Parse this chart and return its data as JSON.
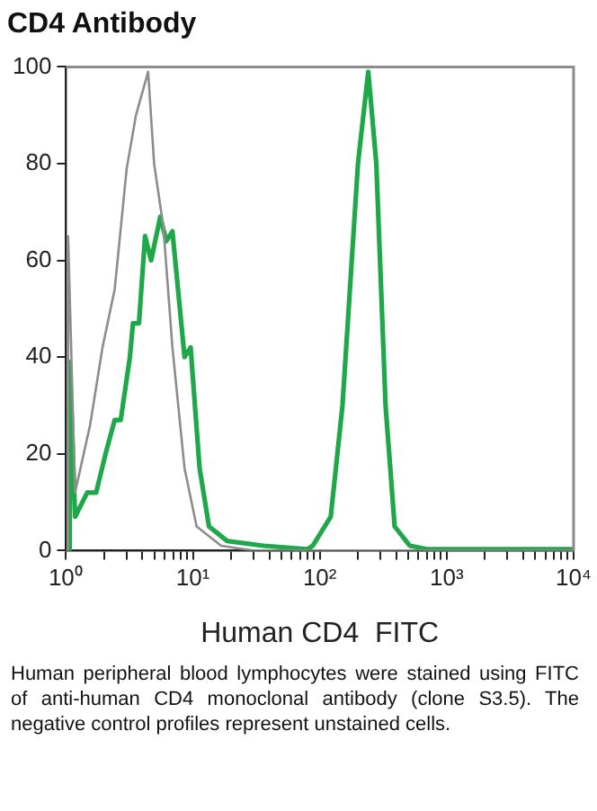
{
  "chart_data": {
    "type": "line",
    "title": "CD4 Antibody",
    "xlabel": "Human CD4  FITC",
    "log": "x",
    "grid": false,
    "legend": false,
    "marker": "none",
    "line_style": "solid",
    "xlim": [
      1,
      10000
    ],
    "xticks": [
      {
        "value": 1,
        "label": "10⁰"
      },
      {
        "value": 2,
        "label": null
      },
      {
        "value": 3,
        "label": null
      },
      {
        "value": 4,
        "label": null
      },
      {
        "value": 5,
        "label": null
      },
      {
        "value": 6,
        "label": null
      },
      {
        "value": 7,
        "label": null
      },
      {
        "value": 8,
        "label": null
      },
      {
        "value": 9,
        "label": null
      },
      {
        "value": 10,
        "label": "10¹"
      },
      {
        "value": 20,
        "label": null
      },
      {
        "value": 30,
        "label": null
      },
      {
        "value": 40,
        "label": null
      },
      {
        "value": 50,
        "label": null
      },
      {
        "value": 60,
        "label": null
      },
      {
        "value": 70,
        "label": null
      },
      {
        "value": 80,
        "label": null
      },
      {
        "value": 90,
        "label": null
      },
      {
        "value": 100,
        "label": "10²"
      },
      {
        "value": 200,
        "label": null
      },
      {
        "value": 300,
        "label": null
      },
      {
        "value": 400,
        "label": null
      },
      {
        "value": 500,
        "label": null
      },
      {
        "value": 600,
        "label": null
      },
      {
        "value": 700,
        "label": null
      },
      {
        "value": 800,
        "label": null
      },
      {
        "value": 900,
        "label": null
      },
      {
        "value": 1000,
        "label": "10³"
      },
      {
        "value": 2000,
        "label": null
      },
      {
        "value": 3000,
        "label": null
      },
      {
        "value": 4000,
        "label": null
      },
      {
        "value": 5000,
        "label": null
      },
      {
        "value": 6000,
        "label": null
      },
      {
        "value": 7000,
        "label": null
      },
      {
        "value": 8000,
        "label": null
      },
      {
        "value": 9000,
        "label": null
      },
      {
        "value": 10000,
        "label": "10⁴"
      }
    ],
    "ylim": [
      0,
      100
    ],
    "yticks": [
      0,
      20,
      40,
      60,
      80,
      100
    ],
    "series": [
      {
        "color": "#8c8c8c",
        "x": [
          1.02,
          1.04,
          1.18,
          1.55,
          1.94,
          2.42,
          3.01,
          3.56,
          4.44,
          4.95,
          5.85,
          6.9,
          8.6,
          10.7,
          16.7,
          30,
          10000
        ],
        "values": [
          0,
          65,
          12,
          26,
          42,
          54,
          79,
          90,
          99,
          80,
          67,
          42,
          17,
          5,
          1,
          0,
          0
        ]
      },
      {
        "color": "#1fa84a",
        "x": [
          1.05,
          1.07,
          1.18,
          1.47,
          1.73,
          2.05,
          2.42,
          2.7,
          3.19,
          3.37,
          3.76,
          4.2,
          4.69,
          5.53,
          6.18,
          6.9,
          8.6,
          9.6,
          11.3,
          13.4,
          18.6,
          36,
          80,
          88,
          122,
          151,
          200,
          241,
          279,
          330,
          389,
          513,
          700,
          10000
        ],
        "values": [
          0,
          39,
          7,
          12,
          12,
          20,
          27,
          27,
          40,
          47,
          47,
          65,
          60,
          69,
          64,
          66,
          40,
          42,
          17,
          5,
          2,
          1,
          0.3,
          1,
          7,
          30,
          80,
          99,
          80,
          30,
          5,
          1,
          0.3,
          0.3
        ]
      }
    ],
    "annotations": [
      "Human peripheral blood lymphocytes were stained using FITC of anti-human CD4 monoclonal antibody (clone S3.5). The negative control profiles represent unstained cells."
    ]
  }
}
